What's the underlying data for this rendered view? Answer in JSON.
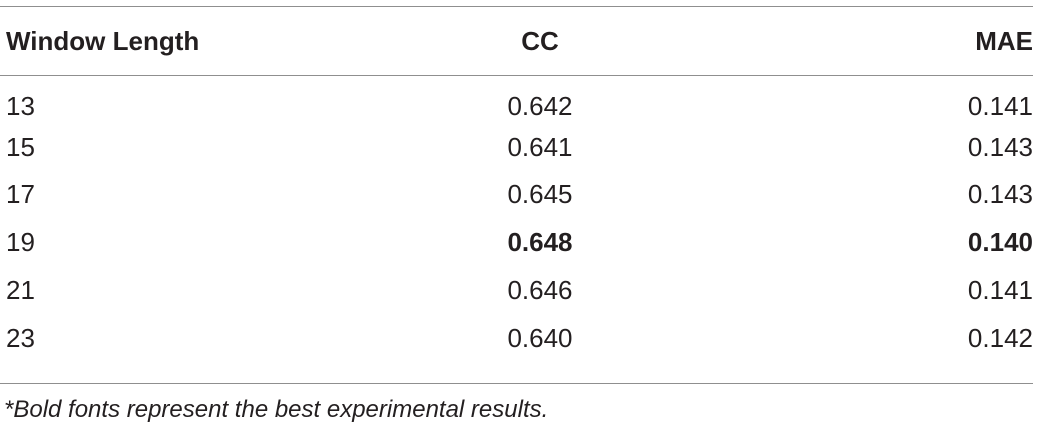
{
  "table": {
    "headers": [
      "Window Length",
      "CC",
      "MAE"
    ],
    "rows": [
      {
        "window_length": "13",
        "cc": "0.642",
        "mae": "0.141",
        "best": false
      },
      {
        "window_length": "15",
        "cc": "0.641",
        "mae": "0.143",
        "best": false
      },
      {
        "window_length": "17",
        "cc": "0.645",
        "mae": "0.143",
        "best": false
      },
      {
        "window_length": "19",
        "cc": "0.648",
        "mae": "0.140",
        "best": true
      },
      {
        "window_length": "21",
        "cc": "0.646",
        "mae": "0.141",
        "best": false
      },
      {
        "window_length": "23",
        "cc": "0.640",
        "mae": "0.142",
        "best": false
      }
    ],
    "footnote": "*Bold fonts represent the best experimental results."
  }
}
